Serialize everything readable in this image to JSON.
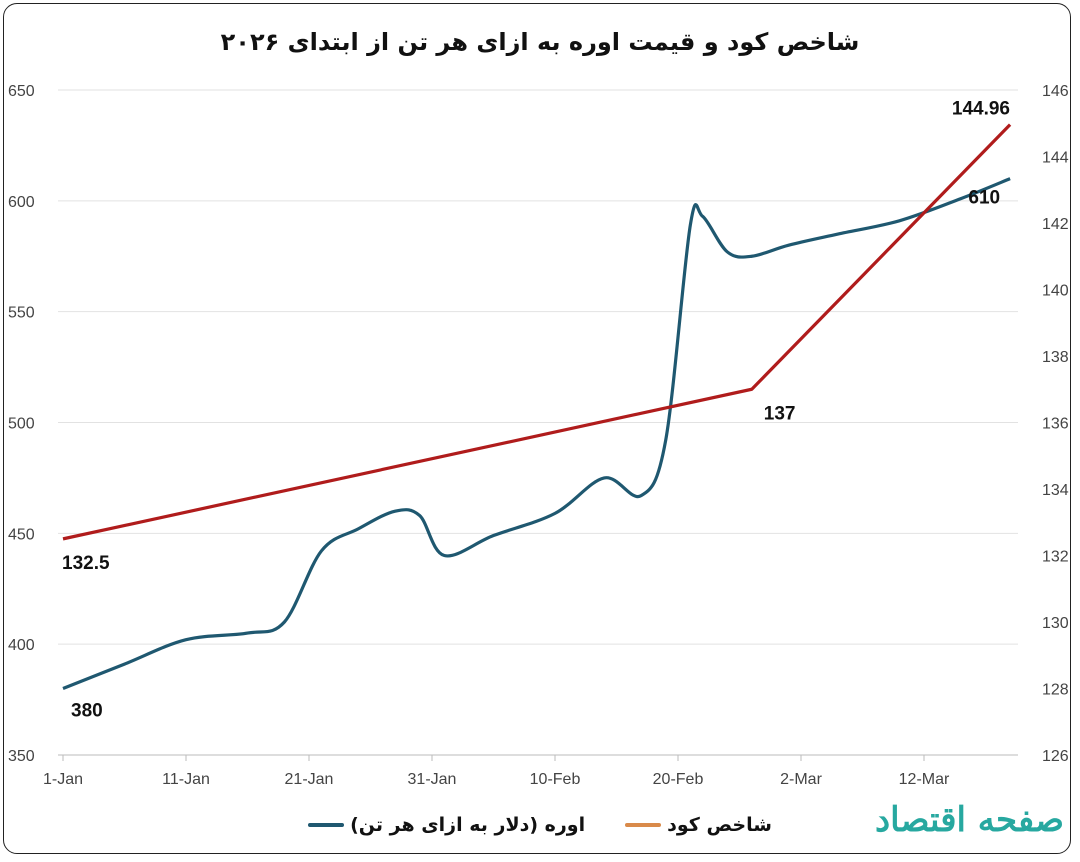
{
  "chart_data": {
    "type": "line",
    "title": "شاخص کود و قیمت اوره به ازای هر تن از ابتدای ۲۰۲۶",
    "x_tick_labels": [
      "1-Jan",
      "11-Jan",
      "21-Jan",
      "31-Jan",
      "10-Feb",
      "20-Feb",
      "2-Mar",
      "12-Mar"
    ],
    "x_unit": "days since 1-Jan 2026",
    "xlim": [
      0,
      78
    ],
    "y_left": {
      "ylim": [
        350,
        650
      ],
      "ticks": [
        350,
        400,
        450,
        500,
        550,
        600,
        650
      ]
    },
    "y_right": {
      "ylim": [
        126,
        146
      ],
      "ticks": [
        126,
        128,
        130,
        132,
        134,
        136,
        138,
        140,
        142,
        144,
        146
      ]
    },
    "grid": true,
    "legend_position": "bottom",
    "series": [
      {
        "name": "اوره (دلار به ازای هر تن)",
        "axis": "left",
        "color": "#1f5870",
        "legend_color": "#1f5870",
        "x": [
          0,
          5,
          10,
          15,
          18,
          21,
          24,
          27,
          29,
          31,
          35,
          40,
          44,
          47,
          49,
          51,
          52,
          54,
          56,
          59,
          63,
          68,
          73,
          77
        ],
        "y": [
          380,
          391,
          402,
          405,
          410,
          442,
          452,
          460,
          458,
          440,
          449,
          459,
          475,
          467,
          492,
          589,
          593,
          577,
          575,
          580,
          585,
          591,
          601,
          610
        ],
        "labels": [
          {
            "index": 0,
            "text": "380"
          },
          {
            "index": 23,
            "text": "610"
          }
        ]
      },
      {
        "name": "شاخص کود",
        "axis": "right",
        "color": "#b01c1c",
        "legend_color": "#d98a4a",
        "x": [
          0,
          56,
          77
        ],
        "y": [
          132.5,
          137,
          144.96
        ],
        "labels": [
          {
            "index": 0,
            "text": "132.5"
          },
          {
            "index": 1,
            "text": "137"
          },
          {
            "index": 2,
            "text": "144.96"
          }
        ]
      }
    ]
  },
  "logo": {
    "text": "صفحه اقتصاد"
  }
}
